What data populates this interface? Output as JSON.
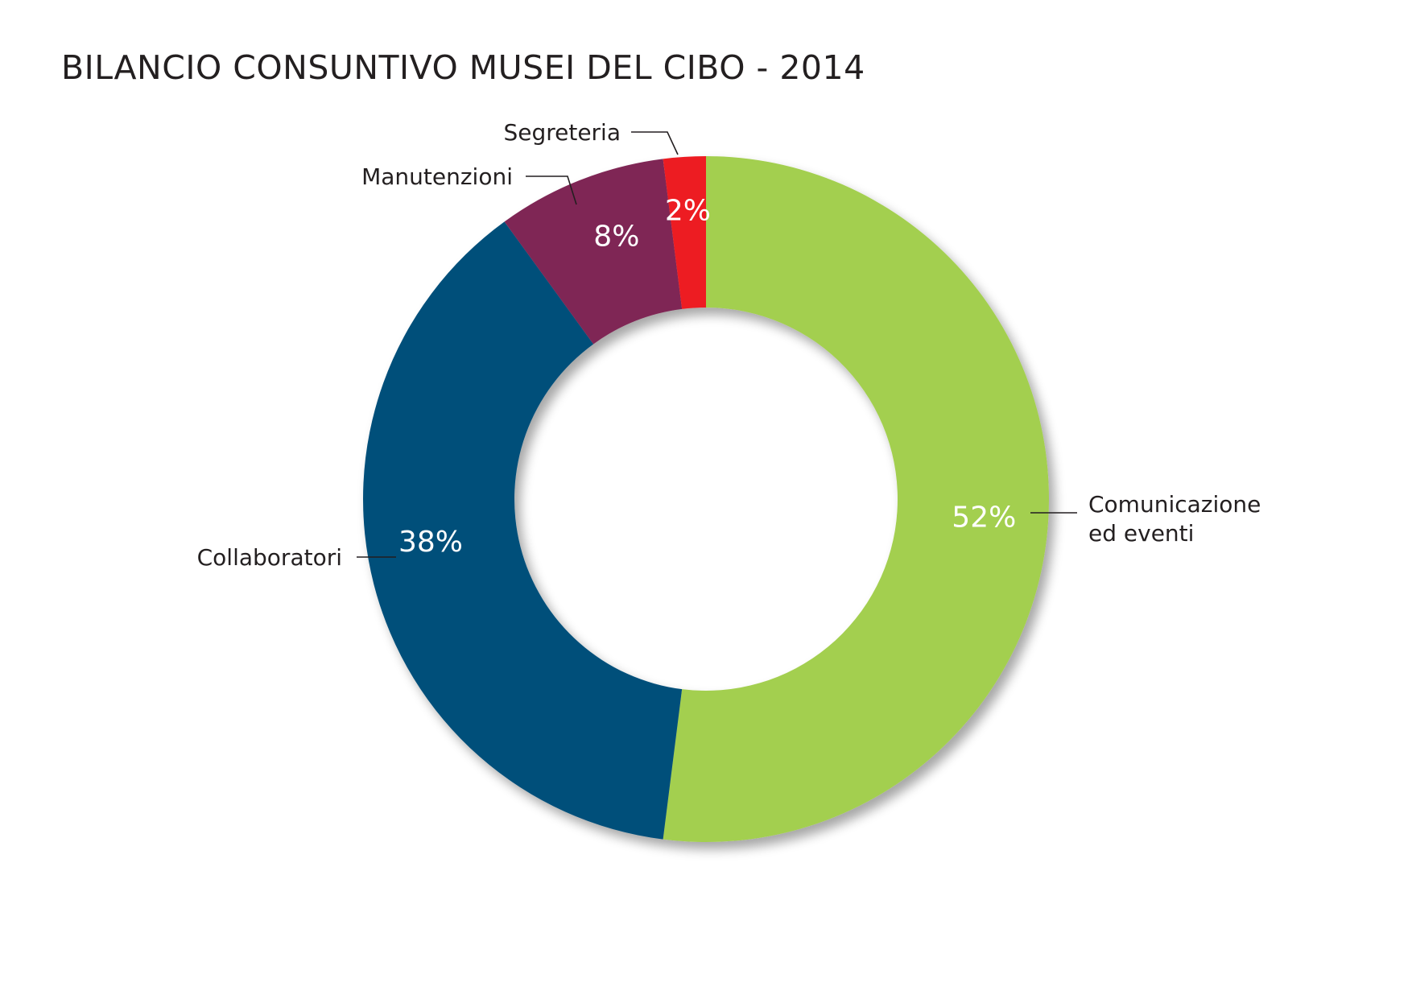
{
  "chart_data": {
    "type": "pie",
    "variant": "donut",
    "title": "BILANCIO CONSUNTIVO MUSEI DEL CIBO - 2014",
    "unit": "%",
    "slices": [
      {
        "label": "Comunicazione ed eventi",
        "label_lines": [
          "Comunicazione",
          "ed eventi"
        ],
        "value": 52,
        "value_label": "52%",
        "color": "#a3cf4f"
      },
      {
        "label": "Collaboratori",
        "label_lines": [
          "Collaboratori"
        ],
        "value": 38,
        "value_label": "38%",
        "color": "#064f7a"
      },
      {
        "label": "Manutenzioni",
        "label_lines": [
          "Manutenzioni"
        ],
        "value": 8,
        "value_label": "8%",
        "color": "#7f2854"
      },
      {
        "label": "Segreteria",
        "label_lines": [
          "Segreteria"
        ],
        "value": 2,
        "value_label": "2%",
        "color": "#ed1c24"
      }
    ],
    "start": "12 o'clock",
    "direction": "clockwise",
    "legend": "none (leader-line labels)"
  }
}
